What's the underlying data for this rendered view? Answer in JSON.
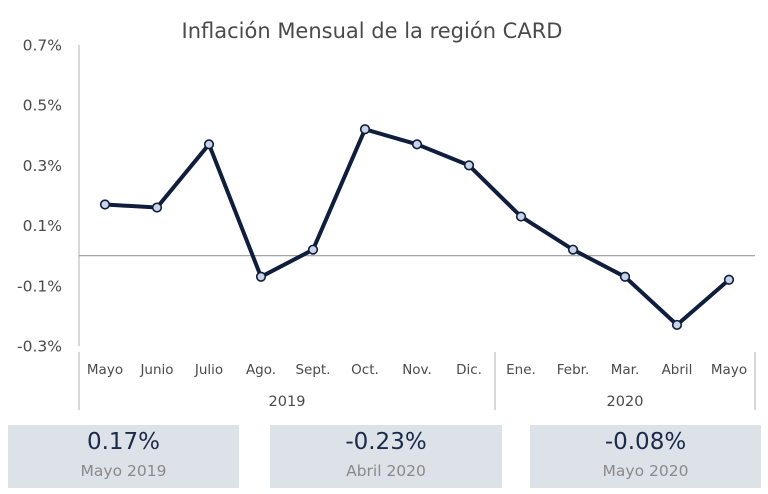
{
  "chart_data": {
    "type": "line",
    "title": "Inflación Mensual de la región CARD",
    "categories": [
      "Mayo",
      "Junio",
      "Julio",
      "Ago.",
      "Sept.",
      "Oct.",
      "Nov.",
      "Dic.",
      "Ene.",
      "Febr.",
      "Mar.",
      "Abril",
      "Mayo"
    ],
    "groups": [
      {
        "label": "2019",
        "count": 8
      },
      {
        "label": "2020",
        "count": 5
      }
    ],
    "series": [
      {
        "values": [
          0.17,
          0.16,
          0.37,
          -0.07,
          0.02,
          0.42,
          0.37,
          0.3,
          0.13,
          0.02,
          -0.07,
          -0.23,
          -0.08
        ]
      }
    ],
    "yticks": [
      "0.7%",
      "0.5%",
      "0.3%",
      "0.1%",
      "-0.1%",
      "-0.3%"
    ],
    "ylim": [
      -0.3,
      0.7
    ],
    "grid": false,
    "colors": {
      "line": "#0f1e3d",
      "marker_fill": "#c9d4e6",
      "baseline": "#9a9a9a",
      "axis": "#b0b0b0"
    }
  },
  "cards": [
    {
      "value": "0.17%",
      "label": "Mayo 2019"
    },
    {
      "value": "-0.23%",
      "label": "Abril 2020"
    },
    {
      "value": "-0.08%",
      "label": "Mayo 2020"
    }
  ]
}
